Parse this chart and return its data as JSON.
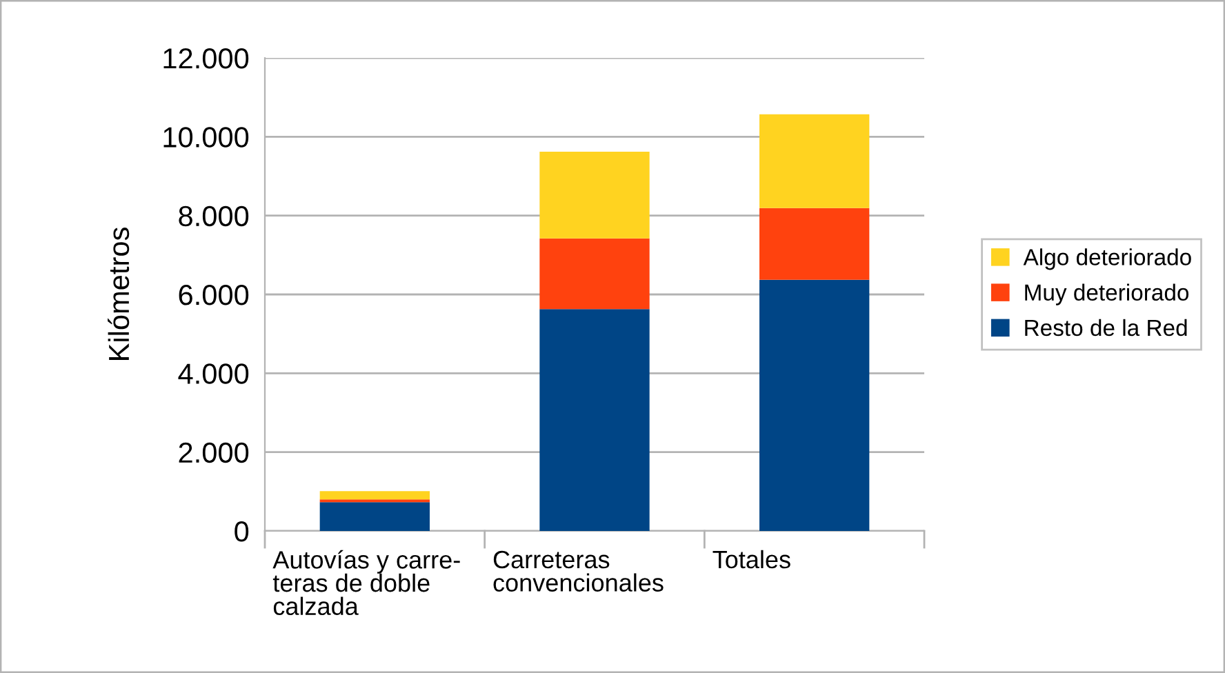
{
  "chart_data": {
    "type": "bar",
    "stacked": true,
    "ylabel": "Kilómetros",
    "categories": [
      "Autovías y carre-\nteras de doble\ncalzada",
      "Carreteras\nconvencionales",
      "Totales"
    ],
    "series": [
      {
        "name": "Resto de la Red",
        "color": "#004586",
        "values": [
          730,
          5630,
          6370
        ]
      },
      {
        "name": "Muy deteriorado",
        "color": "#ff420e",
        "values": [
          70,
          1790,
          1820
        ]
      },
      {
        "name": "Algo deteriorado",
        "color": "#ffd320",
        "values": [
          210,
          2200,
          2380
        ]
      }
    ],
    "ylim": [
      0,
      12000
    ],
    "yticks": [
      {
        "value": 0,
        "label": "0"
      },
      {
        "value": 2000,
        "label": "2.000"
      },
      {
        "value": 4000,
        "label": "4.000"
      },
      {
        "value": 6000,
        "label": "6.000"
      },
      {
        "value": 8000,
        "label": "8.000"
      },
      {
        "value": 10000,
        "label": "10.000"
      },
      {
        "value": 12000,
        "label": "12.000"
      }
    ],
    "grid": "y",
    "legend": "right"
  }
}
